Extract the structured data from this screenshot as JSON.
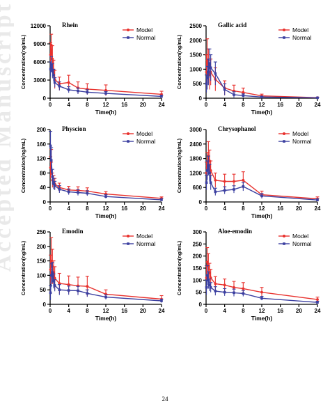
{
  "watermark": "Accepted Manuscript",
  "page_number": "24",
  "colors": {
    "model": "#e8312d",
    "normal": "#3b3fa0",
    "axis": "#000000"
  },
  "chart_data": [
    {
      "type": "line",
      "title": "Rhein",
      "xlabel": "Time(h)",
      "ylabel": "Concentration(ng/mL)",
      "xlim": [
        0,
        24
      ],
      "ylim": [
        0,
        12000
      ],
      "xticks": [
        0,
        4,
        8,
        12,
        16,
        20,
        24
      ],
      "yticks": [
        0,
        3000,
        6000,
        9000,
        12000
      ],
      "legend": "top-right",
      "series": [
        {
          "name": "Model",
          "color": "#e8312d",
          "x": [
            0.083,
            0.25,
            0.5,
            0.75,
            1,
            2,
            4,
            6,
            8,
            12,
            24
          ],
          "y": [
            7200,
            8800,
            6500,
            4700,
            3100,
            2400,
            2600,
            1700,
            1500,
            1300,
            650
          ],
          "err": [
            2000,
            1800,
            2200,
            1600,
            1500,
            1100,
            1200,
            1000,
            900,
            900,
            500
          ]
        },
        {
          "name": "Normal",
          "color": "#3b3fa0",
          "x": [
            0.083,
            0.25,
            0.5,
            0.75,
            1,
            2,
            4,
            6,
            8,
            12,
            24
          ],
          "y": [
            4800,
            5600,
            4500,
            3800,
            2600,
            2000,
            1400,
            1200,
            1000,
            800,
            300
          ],
          "err": [
            1200,
            1300,
            1200,
            1000,
            800,
            700,
            500,
            500,
            400,
            300,
            200
          ]
        }
      ]
    },
    {
      "type": "line",
      "title": "Gallic acid",
      "xlabel": "Time(h)",
      "ylabel": "Concentration(ng/mL)",
      "xlim": [
        0,
        24
      ],
      "ylim": [
        0,
        2500
      ],
      "xticks": [
        0,
        4,
        8,
        12,
        16,
        20,
        24
      ],
      "yticks": [
        0,
        500,
        1000,
        1500,
        2000,
        2500
      ],
      "legend": "top-right",
      "series": [
        {
          "name": "Model",
          "color": "#e8312d",
          "x": [
            0.083,
            0.25,
            0.5,
            0.75,
            1,
            2,
            4,
            6,
            8,
            12,
            24
          ],
          "y": [
            900,
            1300,
            1100,
            800,
            900,
            650,
            350,
            250,
            200,
            80,
            20
          ],
          "err": [
            600,
            750,
            600,
            500,
            450,
            400,
            250,
            200,
            150,
            60,
            15
          ]
        },
        {
          "name": "Normal",
          "color": "#3b3fa0",
          "x": [
            0.083,
            0.25,
            0.5,
            0.75,
            1,
            2,
            4,
            6,
            8,
            12,
            24
          ],
          "y": [
            500,
            700,
            900,
            1200,
            1050,
            850,
            300,
            120,
            90,
            40,
            15
          ],
          "err": [
            300,
            400,
            450,
            500,
            450,
            400,
            200,
            100,
            60,
            30,
            10
          ]
        }
      ]
    },
    {
      "type": "line",
      "title": "Physcion",
      "xlabel": "Time(h)",
      "ylabel": "Concentration(ng/mL)",
      "xlim": [
        0,
        24
      ],
      "ylim": [
        0,
        200
      ],
      "xticks": [
        0,
        4,
        8,
        12,
        16,
        20,
        24
      ],
      "yticks": [
        0,
        40,
        80,
        120,
        160,
        200
      ],
      "legend": "top-right",
      "series": [
        {
          "name": "Model",
          "color": "#e8312d",
          "x": [
            0.083,
            0.25,
            0.5,
            0.75,
            1,
            2,
            4,
            6,
            8,
            12,
            24
          ],
          "y": [
            95,
            110,
            60,
            55,
            50,
            40,
            33,
            32,
            30,
            22,
            10
          ],
          "err": [
            30,
            35,
            20,
            18,
            15,
            12,
            10,
            10,
            9,
            7,
            4
          ]
        },
        {
          "name": "Normal",
          "color": "#3b3fa0",
          "x": [
            0.083,
            0.25,
            0.5,
            0.75,
            1,
            2,
            4,
            6,
            8,
            12,
            24
          ],
          "y": [
            155,
            115,
            70,
            50,
            45,
            35,
            28,
            26,
            24,
            15,
            6
          ],
          "err": [
            40,
            35,
            20,
            15,
            12,
            10,
            8,
            8,
            7,
            5,
            3
          ]
        }
      ]
    },
    {
      "type": "line",
      "title": "Chrysophanol",
      "xlabel": "Time(h)",
      "ylabel": "Concentration(ng/mL)",
      "xlim": [
        0,
        24
      ],
      "ylim": [
        0,
        3000
      ],
      "xticks": [
        0,
        4,
        8,
        12,
        16,
        20,
        24
      ],
      "yticks": [
        0,
        600,
        1200,
        1800,
        2400,
        3000
      ],
      "legend": "top-right",
      "series": [
        {
          "name": "Model",
          "color": "#e8312d",
          "x": [
            0.083,
            0.25,
            0.5,
            0.75,
            1,
            2,
            4,
            6,
            8,
            12,
            24
          ],
          "y": [
            1200,
            1500,
            1900,
            1700,
            1300,
            900,
            850,
            850,
            900,
            300,
            130
          ],
          "err": [
            450,
            550,
            600,
            450,
            400,
            300,
            300,
            300,
            350,
            150,
            80
          ]
        },
        {
          "name": "Normal",
          "color": "#3b3fa0",
          "x": [
            0.083,
            0.25,
            0.5,
            0.75,
            1,
            2,
            4,
            6,
            8,
            12,
            24
          ],
          "y": [
            800,
            1300,
            1500,
            1200,
            800,
            420,
            480,
            520,
            640,
            250,
            80
          ],
          "err": [
            300,
            400,
            400,
            350,
            300,
            150,
            150,
            150,
            180,
            100,
            50
          ]
        }
      ]
    },
    {
      "type": "line",
      "title": "Emodin",
      "xlabel": "Time(h)",
      "ylabel": "Concentration(ng/mL)",
      "xlim": [
        0,
        24
      ],
      "ylim": [
        0,
        250
      ],
      "xticks": [
        0,
        4,
        8,
        12,
        16,
        20,
        24
      ],
      "yticks": [
        0,
        50,
        100,
        150,
        200,
        250
      ],
      "legend": "top-right",
      "series": [
        {
          "name": "Model",
          "color": "#e8312d",
          "x": [
            0.083,
            0.25,
            0.5,
            0.75,
            1,
            2,
            4,
            6,
            8,
            12,
            24
          ],
          "y": [
            120,
            150,
            130,
            110,
            90,
            72,
            68,
            64,
            62,
            35,
            18
          ],
          "err": [
            50,
            80,
            60,
            40,
            40,
            35,
            30,
            30,
            35,
            15,
            12
          ]
        },
        {
          "name": "Normal",
          "color": "#3b3fa0",
          "x": [
            0.083,
            0.25,
            0.5,
            0.75,
            1,
            2,
            4,
            6,
            8,
            12,
            24
          ],
          "y": [
            40,
            100,
            110,
            80,
            65,
            50,
            48,
            47,
            38,
            25,
            12
          ],
          "err": [
            25,
            40,
            35,
            25,
            20,
            18,
            15,
            15,
            12,
            8,
            6
          ]
        }
      ]
    },
    {
      "type": "line",
      "title": "Aloe-emodin",
      "xlabel": "Time(h)",
      "ylabel": "Concentration(ng/mL)",
      "xlim": [
        0,
        24
      ],
      "ylim": [
        0,
        300
      ],
      "xticks": [
        0,
        4,
        8,
        12,
        16,
        20,
        24
      ],
      "yticks": [
        0,
        50,
        100,
        150,
        200,
        250,
        300
      ],
      "legend": "top-right",
      "series": [
        {
          "name": "Model",
          "color": "#e8312d",
          "x": [
            0.083,
            0.25,
            0.5,
            0.75,
            1,
            2,
            4,
            6,
            8,
            12,
            24
          ],
          "y": [
            110,
            175,
            160,
            130,
            110,
            85,
            80,
            70,
            65,
            50,
            20
          ],
          "err": [
            50,
            60,
            50,
            40,
            35,
            30,
            25,
            25,
            25,
            20,
            10
          ]
        },
        {
          "name": "Normal",
          "color": "#3b3fa0",
          "x": [
            0.083,
            0.25,
            0.5,
            0.75,
            1,
            2,
            4,
            6,
            8,
            12,
            24
          ],
          "y": [
            70,
            120,
            100,
            80,
            70,
            55,
            50,
            48,
            45,
            25,
            8
          ],
          "err": [
            30,
            40,
            35,
            25,
            20,
            18,
            15,
            15,
            12,
            8,
            5
          ]
        }
      ]
    }
  ]
}
